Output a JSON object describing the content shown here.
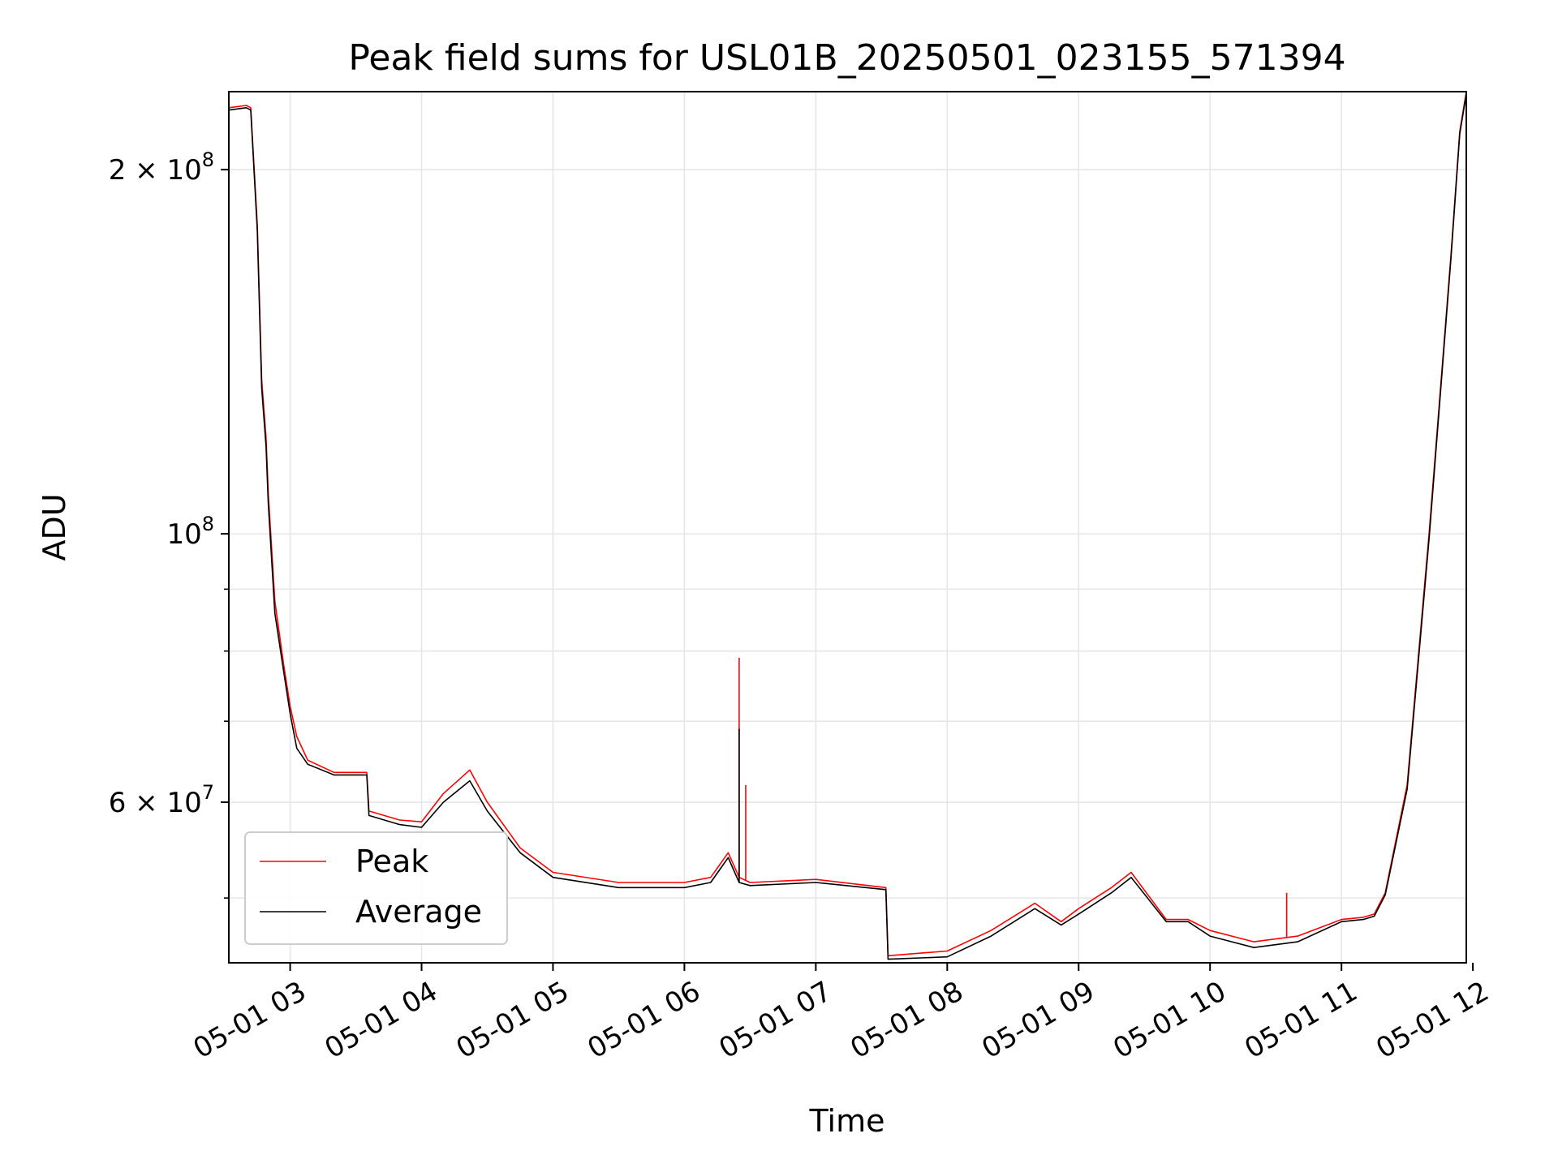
{
  "chart_data": {
    "type": "line",
    "title": "Peak field sums for USL01B_20250501_023155_571394",
    "xlabel": "Time",
    "ylabel": "ADU",
    "x_scale": "time",
    "y_scale": "log",
    "xlim": [
      "2025-05-01 02:32",
      "2025-05-01 11:57"
    ],
    "ylim": [
      44200000,
      232000000
    ],
    "x_ticks": [
      "05-01 03",
      "05-01 04",
      "05-01 05",
      "05-01 06",
      "05-01 07",
      "05-01 08",
      "05-01 09",
      "05-01 10",
      "05-01 11",
      "05-01 12"
    ],
    "x_tick_times": [
      "2025-05-01 03:00",
      "2025-05-01 04:00",
      "2025-05-01 05:00",
      "2025-05-01 06:00",
      "2025-05-01 07:00",
      "2025-05-01 08:00",
      "2025-05-01 09:00",
      "2025-05-01 10:00",
      "2025-05-01 11:00",
      "2025-05-01 12:00"
    ],
    "y_ticks": [
      {
        "value": 200000000,
        "mantissa": "2",
        "exponent": "8"
      },
      {
        "value": 100000000,
        "mantissa": "",
        "exponent": "8"
      },
      {
        "value": 60000000,
        "mantissa": "6",
        "exponent": "7"
      }
    ],
    "y_minor_ticks": [
      50000000,
      70000000,
      80000000,
      90000000
    ],
    "grid": true,
    "legend_position": "lower-left",
    "series": [
      {
        "name": "Peak",
        "color": "#ff0000",
        "x": [
          "2025-05-01 02:32",
          "2025-05-01 02:40",
          "2025-05-01 02:42",
          "2025-05-01 02:45",
          "2025-05-01 02:47",
          "2025-05-01 02:49",
          "2025-05-01 02:50",
          "2025-05-01 02:53",
          "2025-05-01 02:57",
          "2025-05-01 03:00",
          "2025-05-01 03:03",
          "2025-05-01 03:08",
          "2025-05-01 03:20",
          "2025-05-01 03:35",
          "2025-05-01 03:36",
          "2025-05-01 03:50",
          "2025-05-01 04:00",
          "2025-05-01 04:10",
          "2025-05-01 04:22",
          "2025-05-01 04:30",
          "2025-05-01 04:45",
          "2025-05-01 05:00",
          "2025-05-01 05:30",
          "2025-05-01 06:00",
          "2025-05-01 06:12",
          "2025-05-01 06:20",
          "2025-05-01 06:25",
          "2025-05-01 06:30",
          "2025-05-01 07:00",
          "2025-05-01 07:32",
          "2025-05-01 07:33",
          "2025-05-01 08:00",
          "2025-05-01 08:20",
          "2025-05-01 08:40",
          "2025-05-01 08:52",
          "2025-05-01 09:00",
          "2025-05-01 09:15",
          "2025-05-01 09:24",
          "2025-05-01 09:40",
          "2025-05-01 09:50",
          "2025-05-01 10:00",
          "2025-05-01 10:20",
          "2025-05-01 10:40",
          "2025-05-01 11:00",
          "2025-05-01 11:10",
          "2025-05-01 11:15",
          "2025-05-01 11:20",
          "2025-05-01 11:30",
          "2025-05-01 11:40",
          "2025-05-01 11:50",
          "2025-05-01 11:54",
          "2025-05-01 11:57"
        ],
        "y": [
          225000000,
          226000000,
          225000000,
          180000000,
          134000000,
          120000000,
          108000000,
          88000000,
          78000000,
          72000000,
          68000000,
          65000000,
          63500000,
          63500000,
          59000000,
          58000000,
          57800000,
          61000000,
          63800000,
          60000000,
          55000000,
          52500000,
          51500000,
          51500000,
          52000000,
          54500000,
          52000000,
          51500000,
          51800000,
          51000000,
          44800000,
          45200000,
          47000000,
          49500000,
          47800000,
          49000000,
          51000000,
          52500000,
          48000000,
          48000000,
          47000000,
          46000000,
          46500000,
          48000000,
          48200000,
          48500000,
          50500000,
          62000000,
          100000000,
          170000000,
          215000000,
          232000000
        ]
      },
      {
        "name": "Average",
        "color": "#000000",
        "x": [
          "2025-05-01 02:32",
          "2025-05-01 02:40",
          "2025-05-01 02:42",
          "2025-05-01 02:45",
          "2025-05-01 02:47",
          "2025-05-01 02:49",
          "2025-05-01 02:50",
          "2025-05-01 02:53",
          "2025-05-01 02:57",
          "2025-05-01 03:00",
          "2025-05-01 03:03",
          "2025-05-01 03:08",
          "2025-05-01 03:20",
          "2025-05-01 03:35",
          "2025-05-01 03:36",
          "2025-05-01 03:50",
          "2025-05-01 04:00",
          "2025-05-01 04:10",
          "2025-05-01 04:22",
          "2025-05-01 04:30",
          "2025-05-01 04:45",
          "2025-05-01 05:00",
          "2025-05-01 05:30",
          "2025-05-01 06:00",
          "2025-05-01 06:12",
          "2025-05-01 06:20",
          "2025-05-01 06:25",
          "2025-05-01 06:30",
          "2025-05-01 07:00",
          "2025-05-01 07:32",
          "2025-05-01 07:33",
          "2025-05-01 08:00",
          "2025-05-01 08:20",
          "2025-05-01 08:40",
          "2025-05-01 08:52",
          "2025-05-01 09:00",
          "2025-05-01 09:15",
          "2025-05-01 09:24",
          "2025-05-01 09:40",
          "2025-05-01 09:50",
          "2025-05-01 10:00",
          "2025-05-01 10:20",
          "2025-05-01 10:40",
          "2025-05-01 11:00",
          "2025-05-01 11:10",
          "2025-05-01 11:15",
          "2025-05-01 11:20",
          "2025-05-01 11:30",
          "2025-05-01 11:40",
          "2025-05-01 11:50",
          "2025-05-01 11:54",
          "2025-05-01 11:57"
        ],
        "y": [
          224000000,
          225000000,
          224000000,
          178000000,
          132000000,
          118000000,
          106000000,
          86000000,
          77000000,
          71000000,
          66500000,
          64500000,
          63200000,
          63200000,
          58500000,
          57500000,
          57200000,
          60000000,
          62500000,
          59000000,
          54500000,
          52000000,
          51000000,
          51000000,
          51500000,
          54000000,
          51500000,
          51200000,
          51500000,
          50800000,
          44500000,
          44700000,
          46500000,
          49000000,
          47500000,
          48500000,
          50500000,
          52000000,
          47800000,
          47800000,
          46500000,
          45500000,
          46000000,
          47800000,
          48000000,
          48300000,
          50300000,
          61500000,
          99000000,
          169000000,
          214000000,
          231000000
        ]
      }
    ],
    "spikes": [
      {
        "series": "Peak",
        "x": "2025-05-01 06:25",
        "y": 79000000
      },
      {
        "series": "Average",
        "x": "2025-05-01 06:25",
        "y": 69000000
      },
      {
        "series": "Peak",
        "x": "2025-05-01 06:28",
        "y": 62000000
      },
      {
        "series": "Peak",
        "x": "2025-05-01 10:35",
        "y": 50500000
      }
    ]
  }
}
